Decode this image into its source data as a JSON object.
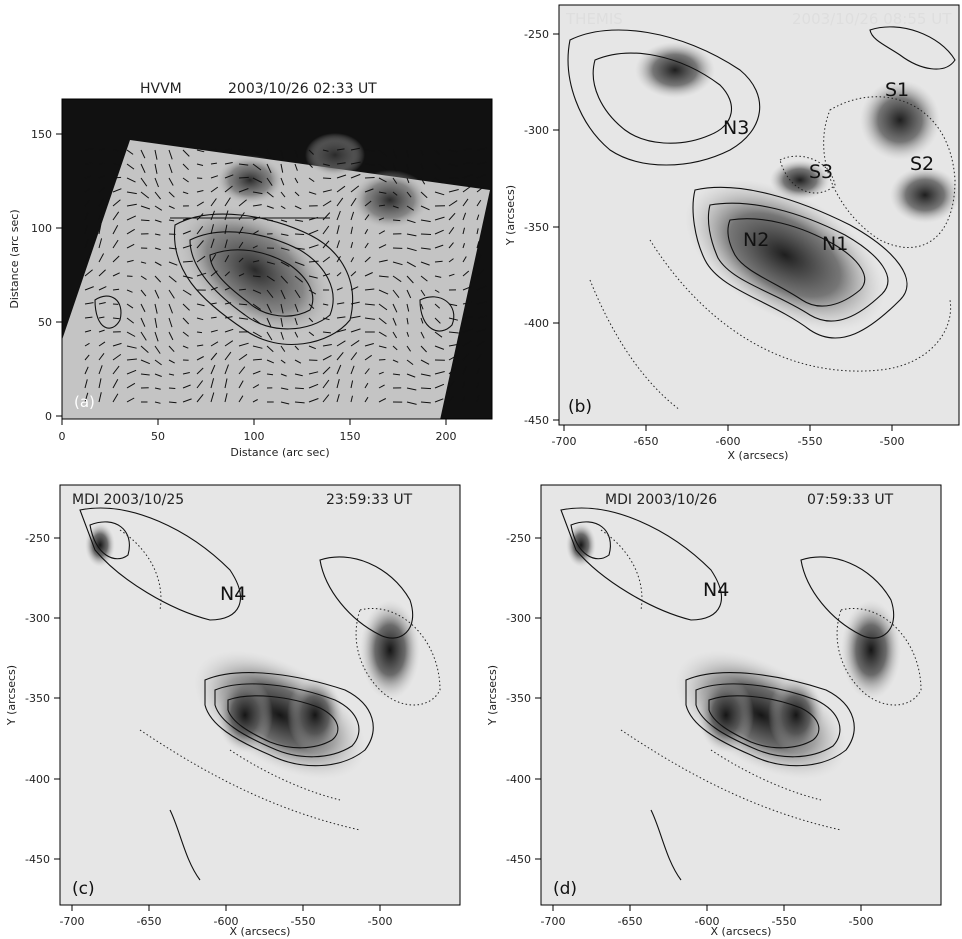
{
  "figure": {
    "panels": [
      {
        "id": "a",
        "title_left": "HVVM",
        "title_right": "2003/10/26 02:33 UT",
        "label": "(a)",
        "xlabel": "Distance (arc sec)",
        "ylabel": "Distance (arc sec)",
        "xticks": [
          "0",
          "50",
          "100",
          "150",
          "200"
        ],
        "yticks": [
          "0",
          "50",
          "100",
          "150"
        ],
        "regions": []
      },
      {
        "id": "b",
        "title_left": "THEMIS",
        "title_right": "2003/10/26 08:55 UT",
        "label": "(b)",
        "xlabel": "X (arcsecs)",
        "ylabel": "Y (arcsecs)",
        "xticks": [
          "-700",
          "-650",
          "-600",
          "-550",
          "-500"
        ],
        "yticks": [
          "-250",
          "-300",
          "-350",
          "-400",
          "-450"
        ],
        "regions": [
          "N3",
          "S1",
          "S3",
          "S2",
          "N2",
          "N1"
        ]
      },
      {
        "id": "c",
        "title_left": "MDI 2003/10/25",
        "title_right": "23:59:33 UT",
        "label": "(c)",
        "xlabel": "X (arcsecs)",
        "ylabel": "Y (arcsecs)",
        "xticks": [
          "-700",
          "-650",
          "-600",
          "-550",
          "-500"
        ],
        "yticks": [
          "-250",
          "-300",
          "-350",
          "-400",
          "-450"
        ],
        "regions": [
          "N4"
        ]
      },
      {
        "id": "d",
        "title_left": "MDI 2003/10/26",
        "title_right": "07:59:33 UT",
        "label": "(d)",
        "xlabel": "X (arcsecs)",
        "ylabel": "Y (arcsecs)",
        "xticks": [
          "-700",
          "-650",
          "-600",
          "-550",
          "-500"
        ],
        "yticks": [
          "-250",
          "-300",
          "-350",
          "-400",
          "-450"
        ],
        "regions": [
          "N4"
        ]
      }
    ]
  }
}
